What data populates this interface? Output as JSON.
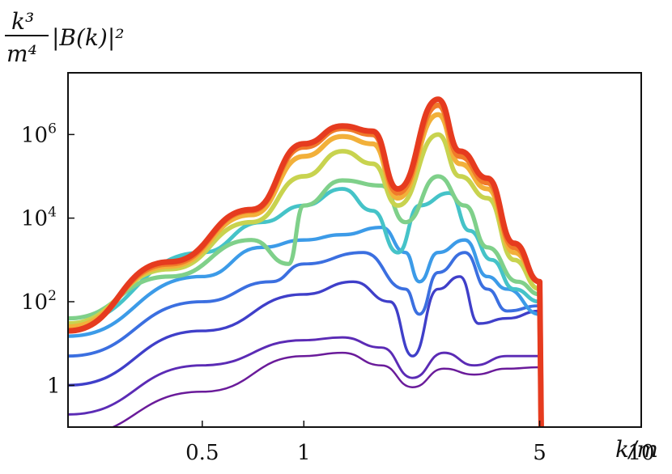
{
  "chart_data": {
    "type": "line",
    "xlabel": "k/m",
    "ylabel_numerator": "k³",
    "ylabel_denominator": "m⁴",
    "ylabel_suffix": "|B(k)|²",
    "x_scale": "log",
    "y_scale": "log",
    "xlim": [
      0.2,
      10
    ],
    "ylim": [
      0.1,
      30000000
    ],
    "x_ticks": [
      {
        "value": 0.5,
        "label": "0.5"
      },
      {
        "value": 1,
        "label": "1"
      },
      {
        "value": 5,
        "label": "5"
      },
      {
        "value": 10,
        "label": "10"
      }
    ],
    "y_ticks": [
      {
        "value": 1,
        "label": "1"
      },
      {
        "value": 100,
        "label": "10",
        "sup": "2"
      },
      {
        "value": 10000,
        "label": "10",
        "sup": "4"
      },
      {
        "value": 1000000,
        "label": "10",
        "sup": "6"
      }
    ],
    "grid": false,
    "legend": "none",
    "colormap": "rainbow (purple → red)",
    "colors": [
      "#6a1b9a",
      "#5b2bb5",
      "#3f3fc9",
      "#3b6fe0",
      "#3c9be8",
      "#45c3c8",
      "#7fd08a",
      "#c8d34f",
      "#f2b03a",
      "#f07a2a",
      "#e63b1f"
    ],
    "cutoff_x": 5,
    "series": [
      {
        "values": [
          [
            0.2,
            0.06
          ],
          [
            0.5,
            0.7
          ],
          [
            1,
            5
          ],
          [
            1.3,
            6
          ],
          [
            1.7,
            3
          ],
          [
            2.1,
            0.9
          ],
          [
            2.6,
            2.5
          ],
          [
            3.2,
            1.8
          ],
          [
            4,
            2.5
          ],
          [
            5,
            2.7
          ]
        ]
      },
      {
        "values": [
          [
            0.2,
            0.2
          ],
          [
            0.5,
            3
          ],
          [
            1,
            12
          ],
          [
            1.3,
            14
          ],
          [
            1.7,
            8
          ],
          [
            2.1,
            1.5
          ],
          [
            2.6,
            6
          ],
          [
            3.2,
            3
          ],
          [
            4,
            5
          ],
          [
            5,
            5
          ]
        ]
      },
      {
        "values": [
          [
            0.2,
            1
          ],
          [
            0.5,
            20
          ],
          [
            1,
            150
          ],
          [
            1.4,
            300
          ],
          [
            1.8,
            100
          ],
          [
            2.1,
            5
          ],
          [
            2.5,
            200
          ],
          [
            2.9,
            400
          ],
          [
            3.3,
            30
          ],
          [
            4,
            40
          ],
          [
            5,
            60
          ]
        ]
      },
      {
        "values": [
          [
            0.2,
            5
          ],
          [
            0.5,
            100
          ],
          [
            0.8,
            300
          ],
          [
            1,
            800
          ],
          [
            1.5,
            1500
          ],
          [
            2,
            200
          ],
          [
            2.2,
            50
          ],
          [
            2.5,
            500
          ],
          [
            3,
            1500
          ],
          [
            3.5,
            200
          ],
          [
            4,
            60
          ],
          [
            5,
            80
          ]
        ]
      },
      {
        "values": [
          [
            0.2,
            15
          ],
          [
            0.5,
            400
          ],
          [
            0.75,
            2000
          ],
          [
            1,
            3000
          ],
          [
            1.3,
            4000
          ],
          [
            1.7,
            6000
          ],
          [
            2,
            1500
          ],
          [
            2.2,
            300
          ],
          [
            2.5,
            1500
          ],
          [
            3,
            3000
          ],
          [
            3.5,
            400
          ],
          [
            4,
            200
          ],
          [
            5,
            50
          ]
        ]
      },
      {
        "values": [
          [
            0.2,
            30
          ],
          [
            0.5,
            1500
          ],
          [
            0.75,
            8000
          ],
          [
            1,
            20000
          ],
          [
            1.3,
            50000
          ],
          [
            1.6,
            15000
          ],
          [
            1.9,
            1500
          ],
          [
            2.2,
            20000
          ],
          [
            2.7,
            40000
          ],
          [
            3.1,
            5000
          ],
          [
            3.6,
            1000
          ],
          [
            4.2,
            200
          ],
          [
            5,
            100
          ]
        ]
      },
      {
        "values": [
          [
            0.2,
            40
          ],
          [
            0.4,
            400
          ],
          [
            0.7,
            3000
          ],
          [
            0.9,
            800
          ],
          [
            1,
            20000
          ],
          [
            1.3,
            80000
          ],
          [
            1.7,
            60000
          ],
          [
            2,
            8000
          ],
          [
            2.5,
            100000
          ],
          [
            3,
            20000
          ],
          [
            3.5,
            2000
          ],
          [
            4.3,
            300
          ],
          [
            5,
            150
          ]
        ]
      },
      {
        "values": [
          [
            0.2,
            30
          ],
          [
            0.4,
            600
          ],
          [
            0.7,
            8000
          ],
          [
            1,
            100000
          ],
          [
            1.3,
            400000
          ],
          [
            1.6,
            200000
          ],
          [
            1.9,
            20000
          ],
          [
            2.5,
            1000000
          ],
          [
            2.9,
            100000
          ],
          [
            3.5,
            30000
          ],
          [
            4.2,
            1000
          ],
          [
            5,
            200
          ]
        ]
      },
      {
        "values": [
          [
            0.2,
            25
          ],
          [
            0.4,
            700
          ],
          [
            0.7,
            12000
          ],
          [
            1,
            300000
          ],
          [
            1.3,
            900000
          ],
          [
            1.6,
            600000
          ],
          [
            1.9,
            30000
          ],
          [
            2.5,
            3000000
          ],
          [
            2.9,
            200000
          ],
          [
            3.5,
            50000
          ],
          [
            4.2,
            1500
          ],
          [
            5,
            300
          ]
        ]
      },
      {
        "values": [
          [
            0.2,
            20
          ],
          [
            0.4,
            800
          ],
          [
            0.7,
            15000
          ],
          [
            1,
            500000
          ],
          [
            1.3,
            1400000
          ],
          [
            1.6,
            1000000
          ],
          [
            1.9,
            40000
          ],
          [
            2.5,
            5000000
          ],
          [
            2.9,
            300000
          ],
          [
            3.5,
            70000
          ],
          [
            4.2,
            2000
          ],
          [
            5,
            300
          ]
        ]
      },
      {
        "values": [
          [
            0.2,
            20
          ],
          [
            0.4,
            900
          ],
          [
            0.7,
            16000
          ],
          [
            1,
            600000
          ],
          [
            1.3,
            1600000
          ],
          [
            1.6,
            1200000
          ],
          [
            1.9,
            50000
          ],
          [
            2.5,
            7000000
          ],
          [
            2.9,
            400000
          ],
          [
            3.5,
            90000
          ],
          [
            4.2,
            2500
          ],
          [
            5,
            300
          ]
        ]
      }
    ]
  }
}
